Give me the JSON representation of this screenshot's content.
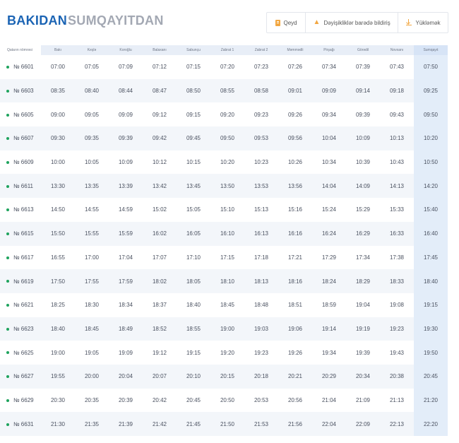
{
  "tabs": {
    "active": "BAKIDAN",
    "inactive": "SUMQAYITDAN"
  },
  "actions": {
    "note": "Qeyd",
    "notify": "Dəyişikliklər barədə bildiriş",
    "download": "Yükləmək"
  },
  "table": {
    "num_header": "Qatarın nömrəsi",
    "stations": [
      "Bakı",
      "Keşlə",
      "Koroğlu",
      "Balaxanı",
      "Sabunçu",
      "Zabrat 1",
      "Zabrat 2",
      "Məmmədli",
      "Pirşağı",
      "Görədil",
      "Novxanı",
      "Sumqayıt"
    ],
    "rows": [
      {
        "num": "№ 6601",
        "times": [
          "07:00",
          "07:05",
          "07:09",
          "07:12",
          "07:15",
          "07:20",
          "07:23",
          "07:26",
          "07:34",
          "07:39",
          "07:43",
          "07:50"
        ]
      },
      {
        "num": "№ 6603",
        "times": [
          "08:35",
          "08:40",
          "08:44",
          "08:47",
          "08:50",
          "08:55",
          "08:58",
          "09:01",
          "09:09",
          "09:14",
          "09:18",
          "09:25"
        ]
      },
      {
        "num": "№ 6605",
        "times": [
          "09:00",
          "09:05",
          "09:09",
          "09:12",
          "09:15",
          "09:20",
          "09:23",
          "09:26",
          "09:34",
          "09:39",
          "09:43",
          "09:50"
        ]
      },
      {
        "num": "№ 6607",
        "times": [
          "09:30",
          "09:35",
          "09:39",
          "09:42",
          "09:45",
          "09:50",
          "09:53",
          "09:56",
          "10:04",
          "10:09",
          "10:13",
          "10:20"
        ]
      },
      {
        "num": "№ 6609",
        "times": [
          "10:00",
          "10:05",
          "10:09",
          "10:12",
          "10:15",
          "10:20",
          "10:23",
          "10:26",
          "10:34",
          "10:39",
          "10:43",
          "10:50"
        ]
      },
      {
        "num": "№ 6611",
        "times": [
          "13:30",
          "13:35",
          "13:39",
          "13:42",
          "13:45",
          "13:50",
          "13:53",
          "13:56",
          "14:04",
          "14:09",
          "14:13",
          "14:20"
        ]
      },
      {
        "num": "№ 6613",
        "times": [
          "14:50",
          "14:55",
          "14:59",
          "15:02",
          "15:05",
          "15:10",
          "15:13",
          "15:16",
          "15:24",
          "15:29",
          "15:33",
          "15:40"
        ]
      },
      {
        "num": "№ 6615",
        "times": [
          "15:50",
          "15:55",
          "15:59",
          "16:02",
          "16:05",
          "16:10",
          "16:13",
          "16:16",
          "16:24",
          "16:29",
          "16:33",
          "16:40"
        ]
      },
      {
        "num": "№ 6617",
        "times": [
          "16:55",
          "17:00",
          "17:04",
          "17:07",
          "17:10",
          "17:15",
          "17:18",
          "17:21",
          "17:29",
          "17:34",
          "17:38",
          "17:45"
        ]
      },
      {
        "num": "№ 6619",
        "times": [
          "17:50",
          "17:55",
          "17:59",
          "18:02",
          "18:05",
          "18:10",
          "18:13",
          "18:16",
          "18:24",
          "18:29",
          "18:33",
          "18:40"
        ]
      },
      {
        "num": "№ 6621",
        "times": [
          "18:25",
          "18:30",
          "18:34",
          "18:37",
          "18:40",
          "18:45",
          "18:48",
          "18:51",
          "18:59",
          "19:04",
          "19:08",
          "19:15"
        ]
      },
      {
        "num": "№ 6623",
        "times": [
          "18:40",
          "18:45",
          "18:49",
          "18:52",
          "18:55",
          "19:00",
          "19:03",
          "19:06",
          "19:14",
          "19:19",
          "19:23",
          "19:30"
        ]
      },
      {
        "num": "№ 6625",
        "times": [
          "19:00",
          "19:05",
          "19:09",
          "19:12",
          "19:15",
          "19:20",
          "19:23",
          "19:26",
          "19:34",
          "19:39",
          "19:43",
          "19:50"
        ]
      },
      {
        "num": "№ 6627",
        "times": [
          "19:55",
          "20:00",
          "20:04",
          "20:07",
          "20:10",
          "20:15",
          "20:18",
          "20:21",
          "20:29",
          "20:34",
          "20:38",
          "20:45"
        ]
      },
      {
        "num": "№ 6629",
        "times": [
          "20:30",
          "20:35",
          "20:39",
          "20:42",
          "20:45",
          "20:50",
          "20:53",
          "20:56",
          "21:04",
          "21:09",
          "21:13",
          "21:20"
        ]
      },
      {
        "num": "№ 6631",
        "times": [
          "21:30",
          "21:35",
          "21:39",
          "21:42",
          "21:45",
          "21:50",
          "21:53",
          "21:56",
          "22:04",
          "22:09",
          "22:13",
          "22:20"
        ]
      }
    ]
  },
  "colors": {
    "accent": "#1b64b4",
    "inactive_tab": "#a3a8b3",
    "icon_orange": "#f2a742",
    "dot_green": "#1ea35d",
    "header_bg": "#e8eef7",
    "dest_col_bg": "#e3edf9"
  }
}
